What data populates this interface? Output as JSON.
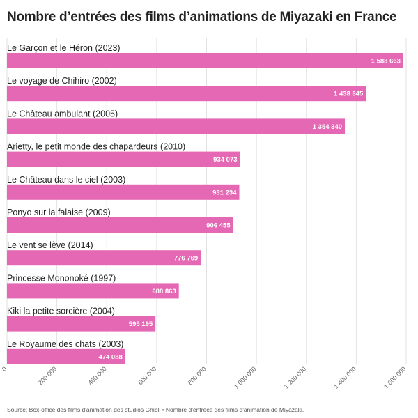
{
  "chart_data": {
    "type": "bar",
    "orientation": "horizontal",
    "title": "Nombre d’entrées des films d’animations de Miyazaki en France",
    "categories": [
      "Le Garçon et le Héron (2023)",
      "Le voyage de Chihiro (2002)",
      "Le Château ambulant (2005)",
      "Arietty, le petit monde des chapardeurs (2010)",
      "Le Château dans le ciel (2003)",
      "Ponyo sur la falaise (2009)",
      "Le vent se lève (2014)",
      "Princesse Mononoké (1997)",
      "Kiki la petite sorcière (2004)",
      "Le Royaume des chats (2003)"
    ],
    "values": [
      1588663,
      1438845,
      1354340,
      934073,
      931234,
      906455,
      776769,
      688863,
      595195,
      474088
    ],
    "value_labels": [
      "1 588 663",
      "1 438 845",
      "1 354 340",
      "934 073",
      "931 234",
      "906 455",
      "776 769",
      "688 863",
      "595 195",
      "474 088"
    ],
    "xlim": [
      0,
      1600000
    ],
    "x_ticks": [
      0,
      200000,
      400000,
      600000,
      800000,
      1000000,
      1200000,
      1400000,
      1600000
    ],
    "x_tick_labels": [
      "0",
      "200 000",
      "400 000",
      "600 000",
      "800 000",
      "1 000 000",
      "1 200 000",
      "1 400 000",
      "1 600 000"
    ],
    "grid": true,
    "bar_color": "#e568b4",
    "grid_color": "#e2e2e2"
  },
  "source": "Source: Box-office des films d'animation des studios Ghibli • Nombre d'entrées des films d'animation de Miyazaki."
}
